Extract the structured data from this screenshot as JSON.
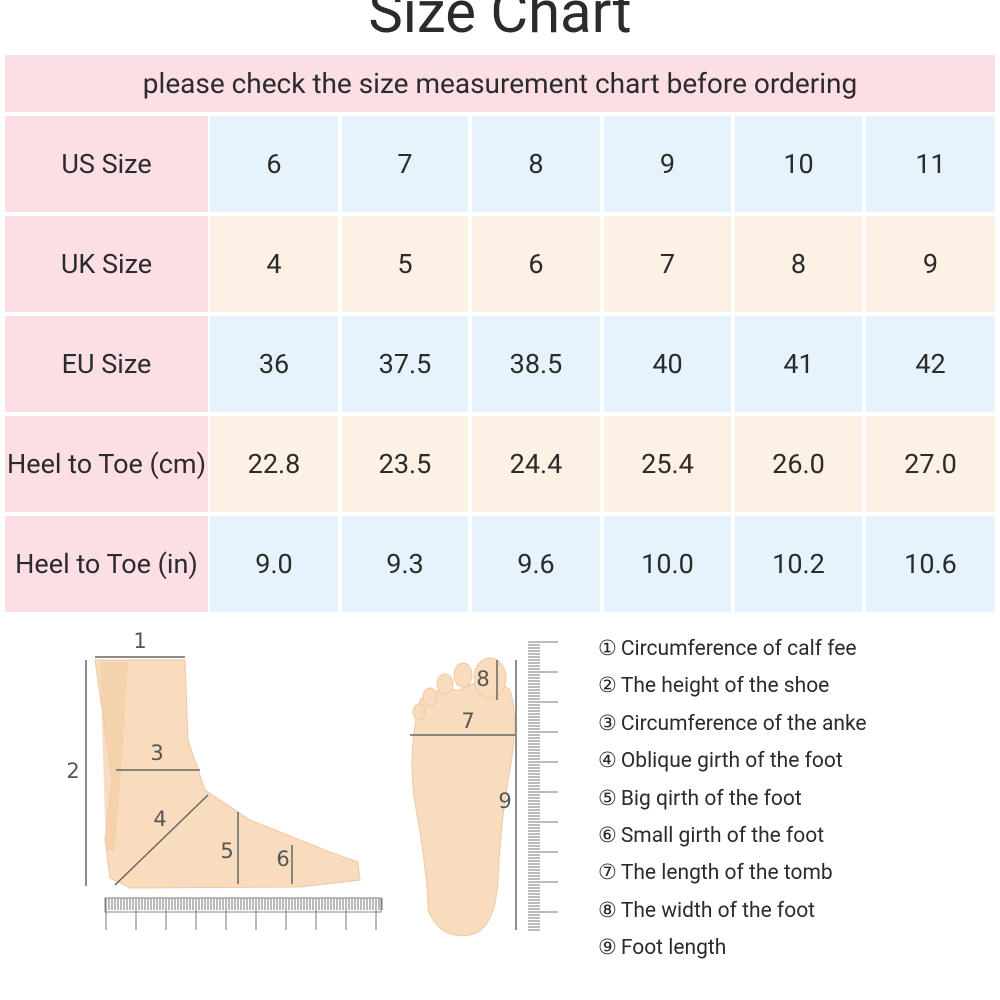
{
  "header": {
    "title": "Size Chart",
    "subtitle": "please check the size measurement chart before ordering"
  },
  "table": {
    "rows": [
      [
        "US Size",
        "6",
        "7",
        "8",
        "9",
        "10",
        "11"
      ],
      [
        "UK Size",
        "4",
        "5",
        "6",
        "7",
        "8",
        "9"
      ],
      [
        "EU Size",
        "36",
        "37.5",
        "38.5",
        "40",
        "41",
        "42"
      ],
      [
        "Heel to Toe (cm)",
        "22.8",
        "23.5",
        "24.4",
        "25.4",
        "26.0",
        "27.0"
      ],
      [
        "Heel to Toe (in)",
        "9.0",
        "9.3",
        "9.6",
        "10.0",
        "10.2",
        "10.6"
      ]
    ]
  },
  "diagram": {
    "labels": [
      "1",
      "2",
      "3",
      "4",
      "5",
      "6",
      "7",
      "8",
      "9"
    ]
  },
  "legend": {
    "items": [
      {
        "marker": "①",
        "text": "Circumference of calf fee"
      },
      {
        "marker": "②",
        "text": "The height of the shoe"
      },
      {
        "marker": "③",
        "text": "Circumference of the anke"
      },
      {
        "marker": "④",
        "text": "Oblique girth of the foot"
      },
      {
        "marker": "⑤",
        "text": "Big qirth of the foot"
      },
      {
        "marker": "⑥",
        "text": "Small girth of the foot"
      },
      {
        "marker": "⑦",
        "text": "The length of the tomb"
      },
      {
        "marker": "⑧",
        "text": "The width of the foot"
      },
      {
        "marker": "⑨",
        "text": "Foot length"
      }
    ]
  }
}
